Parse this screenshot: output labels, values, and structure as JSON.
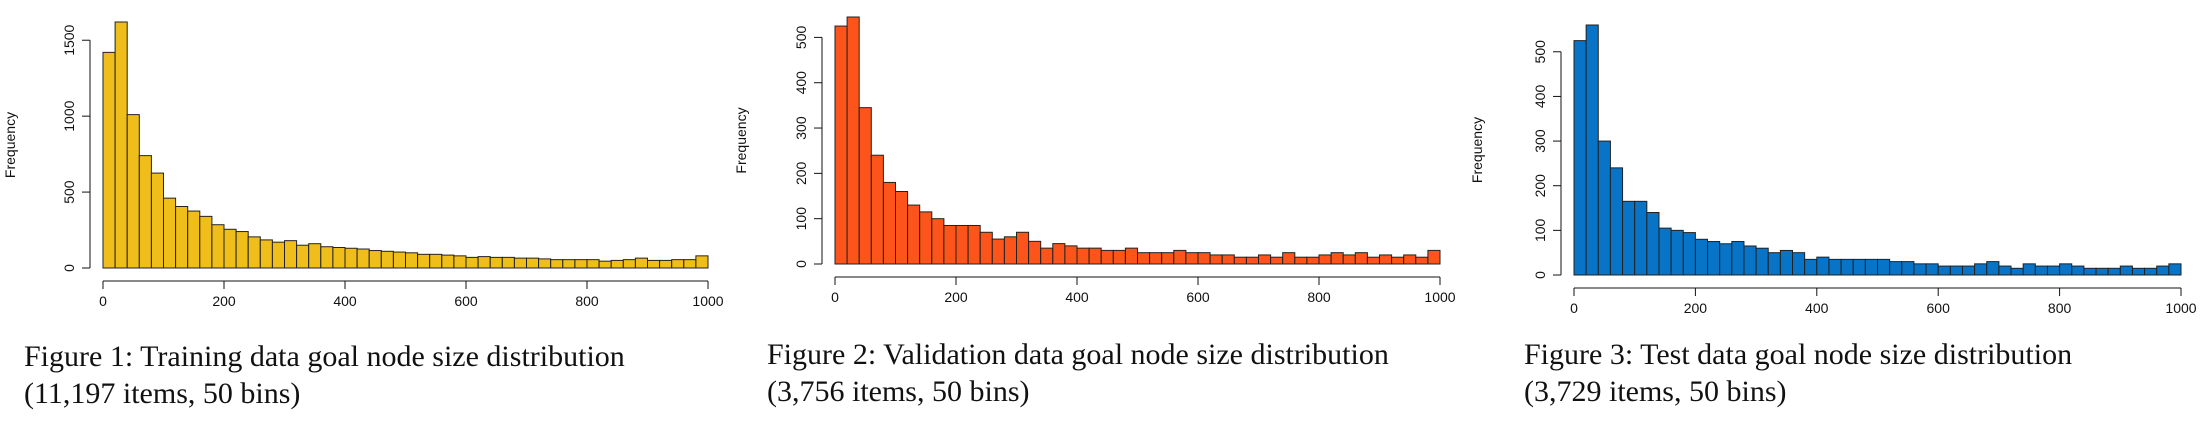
{
  "chart_data": [
    {
      "type": "histogram",
      "ylabel": "Frequency",
      "xlim": [
        0,
        1000
      ],
      "ylim": [
        0,
        1620
      ],
      "x_ticks": [
        0,
        200,
        400,
        600,
        800,
        1000
      ],
      "y_ticks": [
        0,
        500,
        1000,
        1500
      ],
      "bin_width": 20,
      "bar_color": "#f0be1a",
      "values": [
        1420,
        1620,
        1010,
        740,
        625,
        460,
        405,
        375,
        340,
        285,
        255,
        240,
        205,
        185,
        170,
        180,
        150,
        160,
        140,
        135,
        130,
        125,
        115,
        110,
        105,
        100,
        90,
        90,
        85,
        80,
        70,
        75,
        70,
        70,
        65,
        65,
        60,
        55,
        55,
        55,
        55,
        45,
        50,
        55,
        65,
        50,
        50,
        55,
        55,
        80
      ],
      "caption_line1": "Figure 1: Training data goal node size distribution",
      "caption_line2": "(11,197 items, 50 bins)"
    },
    {
      "type": "histogram",
      "ylabel": "Frequency",
      "xlim": [
        0,
        1000
      ],
      "ylim": [
        0,
        545
      ],
      "x_ticks": [
        0,
        200,
        400,
        600,
        800,
        1000
      ],
      "y_ticks": [
        0,
        100,
        200,
        300,
        400,
        500
      ],
      "bin_width": 20,
      "bar_color": "#fc541a",
      "values": [
        525,
        545,
        345,
        240,
        180,
        160,
        130,
        115,
        100,
        85,
        85,
        85,
        70,
        55,
        60,
        70,
        50,
        35,
        45,
        40,
        35,
        35,
        30,
        30,
        35,
        25,
        25,
        25,
        30,
        25,
        25,
        20,
        20,
        15,
        15,
        20,
        15,
        25,
        15,
        15,
        20,
        25,
        20,
        25,
        15,
        20,
        15,
        20,
        15,
        30
      ],
      "caption_line1": "Figure 2: Validation data goal node size distribution",
      "caption_line2": "(3,756 items, 50 bins)"
    },
    {
      "type": "histogram",
      "ylabel": "Frequency",
      "xlim": [
        0,
        1000
      ],
      "ylim": [
        0,
        560
      ],
      "x_ticks": [
        0,
        200,
        400,
        600,
        800,
        1000
      ],
      "y_ticks": [
        0,
        100,
        200,
        300,
        400,
        500
      ],
      "bin_width": 20,
      "bar_color": "#0774c7",
      "values": [
        525,
        560,
        300,
        240,
        165,
        165,
        140,
        105,
        100,
        95,
        80,
        75,
        70,
        75,
        65,
        60,
        50,
        55,
        50,
        35,
        40,
        35,
        35,
        35,
        35,
        35,
        30,
        30,
        25,
        25,
        20,
        20,
        20,
        25,
        30,
        20,
        15,
        25,
        20,
        20,
        25,
        20,
        15,
        15,
        15,
        20,
        15,
        15,
        20,
        25
      ],
      "caption_line1": "Figure 3: Test data goal node size distribution",
      "caption_line2": "(3,729 items, 50 bins)"
    }
  ]
}
